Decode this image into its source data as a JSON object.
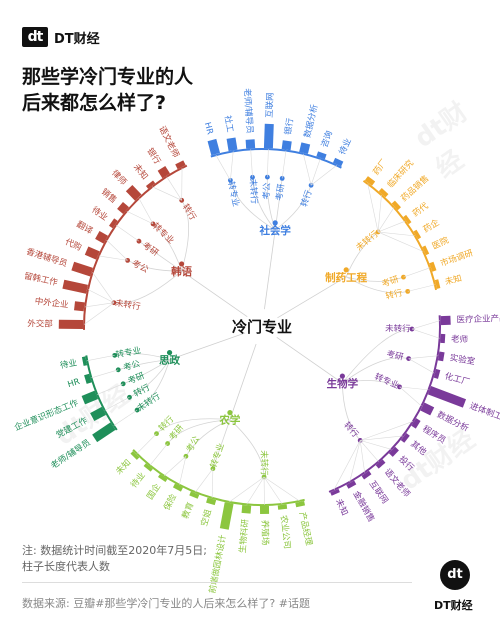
{
  "brand": {
    "logo": "dt",
    "name": "DT财经"
  },
  "title": {
    "line1": "那些学冷门专业的人",
    "line2": "后来都怎么样了?"
  },
  "watermark": "dt财经",
  "note": {
    "line1": "注: 数据统计时间截至2020年7月5日;",
    "line2": "柱子长度代表人数"
  },
  "source": "数据来源: 豆瓣#那些学冷门专业的人后来怎么样了? #话题",
  "corner": {
    "logo": "dt",
    "name": "DT财经"
  },
  "chart_data": {
    "type": "radial-tree-bar",
    "root": "冷门专业",
    "value_note": "柱子长度代表人数",
    "branches": [
      {
        "name": "社会学",
        "color": "#3f7fe0",
        "groups": [
          {
            "name": "转专业",
            "outcomes": [
              {
                "label": "HR",
                "value": 0.33
              },
              {
                "label": "社工",
                "value": 0.28
              }
            ]
          },
          {
            "name": "未转行",
            "outcomes": [
              {
                "label": "老师/辅导员",
                "value": 0.2
              }
            ]
          },
          {
            "name": "考公",
            "outcomes": [
              {
                "label": "互联网",
                "value": 0.55
              }
            ]
          },
          {
            "name": "考研",
            "outcomes": [
              {
                "label": "银行",
                "value": 0.2
              }
            ]
          },
          {
            "name": "转行",
            "outcomes": [
              {
                "label": "数据分析",
                "value": 0.22
              },
              {
                "label": "咨询",
                "value": 0.12
              },
              {
                "label": "待业",
                "value": 0.12
              }
            ]
          }
        ]
      },
      {
        "name": "制药工程",
        "color": "#f0a928",
        "groups": [
          {
            "name": "未转行",
            "outcomes": [
              {
                "label": "药厂",
                "value": 0.12
              },
              {
                "label": "临床研究",
                "value": 0.1
              },
              {
                "label": "药品销售",
                "value": 0.1
              },
              {
                "label": "药代",
                "value": 0.08
              },
              {
                "label": "药企",
                "value": 0.08
              },
              {
                "label": "医院",
                "value": 0.08
              }
            ]
          },
          {
            "name": "考研",
            "outcomes": [
              {
                "label": "市场调研",
                "value": 0.1
              }
            ]
          },
          {
            "name": "转行",
            "outcomes": [
              {
                "label": "未知",
                "value": 0.08
              }
            ]
          }
        ]
      },
      {
        "name": "生物学",
        "color": "#7a3a9a",
        "groups": [
          {
            "name": "未转行",
            "outcomes": [
              {
                "label": "医疗企业产品部门",
                "value": 0.22
              },
              {
                "label": "老师",
                "value": 0.1
              }
            ]
          },
          {
            "name": "考研",
            "outcomes": [
              {
                "label": "实验室",
                "value": 0.12
              },
              {
                "label": "化工厂",
                "value": 0.1
              }
            ]
          },
          {
            "name": "转专业",
            "outcomes": [
              {
                "label": "进体制工作",
                "value": 0.85
              },
              {
                "label": "数据分析",
                "value": 0.25
              }
            ]
          },
          {
            "name": "转行",
            "outcomes": [
              {
                "label": "程序员",
                "value": 0.12
              },
              {
                "label": "其他",
                "value": 0.1
              },
              {
                "label": "投行",
                "value": 0.12
              },
              {
                "label": "语文老师",
                "value": 0.1
              },
              {
                "label": "互联网",
                "value": 0.1
              },
              {
                "label": "金融销售",
                "value": 0.1
              },
              {
                "label": "未知",
                "value": 0.08
              }
            ]
          }
        ]
      },
      {
        "name": "农学",
        "color": "#8cc63f",
        "groups": [
          {
            "name": "未转行",
            "outcomes": [
              {
                "label": "产品经理",
                "value": 0.1
              },
              {
                "label": "农业公司",
                "value": 0.1
              },
              {
                "label": "养殖场",
                "value": 0.18
              },
              {
                "label": "生物科研",
                "value": 0.18
              },
              {
                "label": "前端做园林设计",
                "value": 0.6
              }
            ]
          },
          {
            "name": "转专业",
            "outcomes": [
              {
                "label": "空姐",
                "value": 0.12
              },
              {
                "label": "教育",
                "value": 0.1
              }
            ]
          },
          {
            "name": "考公",
            "outcomes": [
              {
                "label": "保险",
                "value": 0.1
              },
              {
                "label": "国企",
                "value": 0.08
              }
            ]
          },
          {
            "name": "考研",
            "outcomes": [
              {
                "label": "待业",
                "value": 0.08
              }
            ]
          },
          {
            "name": "转行",
            "outcomes": [
              {
                "label": "未知",
                "value": 0.08
              }
            ]
          }
        ]
      },
      {
        "name": "思政",
        "color": "#1f8f5a",
        "groups": [
          {
            "name": "未转行",
            "outcomes": [
              {
                "label": "老师/辅导员",
                "value": 0.5
              }
            ]
          },
          {
            "name": "转行",
            "outcomes": [
              {
                "label": "党建工作",
                "value": 0.3
              }
            ]
          },
          {
            "name": "考研",
            "outcomes": [
              {
                "label": "企业意识形态工作",
                "value": 0.32
              }
            ]
          },
          {
            "name": "考公",
            "outcomes": [
              {
                "label": "HR",
                "value": 0.12
              }
            ]
          },
          {
            "name": "转专业",
            "outcomes": [
              {
                "label": "待业",
                "value": 0.08
              }
            ]
          }
        ]
      },
      {
        "name": "韩语",
        "color": "#b5473a",
        "groups": [
          {
            "name": "未转行",
            "outcomes": [
              {
                "label": "外交部",
                "value": 0.55
              },
              {
                "label": "中外企业",
                "value": 0.22
              },
              {
                "label": "留韩工作",
                "value": 0.55
              },
              {
                "label": "香港辅导员",
                "value": 0.45
              }
            ]
          },
          {
            "name": "考公",
            "outcomes": [
              {
                "label": "代购",
                "value": 0.28
              },
              {
                "label": "翻译",
                "value": 0.22
              }
            ]
          },
          {
            "name": "考研",
            "outcomes": [
              {
                "label": "待业",
                "value": 0.1
              }
            ]
          },
          {
            "name": "转专业",
            "outcomes": [
              {
                "label": "销售",
                "value": 0.18
              },
              {
                "label": "律师",
                "value": 0.3
              }
            ]
          },
          {
            "name": "转行",
            "outcomes": [
              {
                "label": "未知",
                "value": 0.08
              },
              {
                "label": "银行",
                "value": 0.2
              },
              {
                "label": "语文老师",
                "value": 0.12
              }
            ]
          }
        ]
      }
    ]
  }
}
